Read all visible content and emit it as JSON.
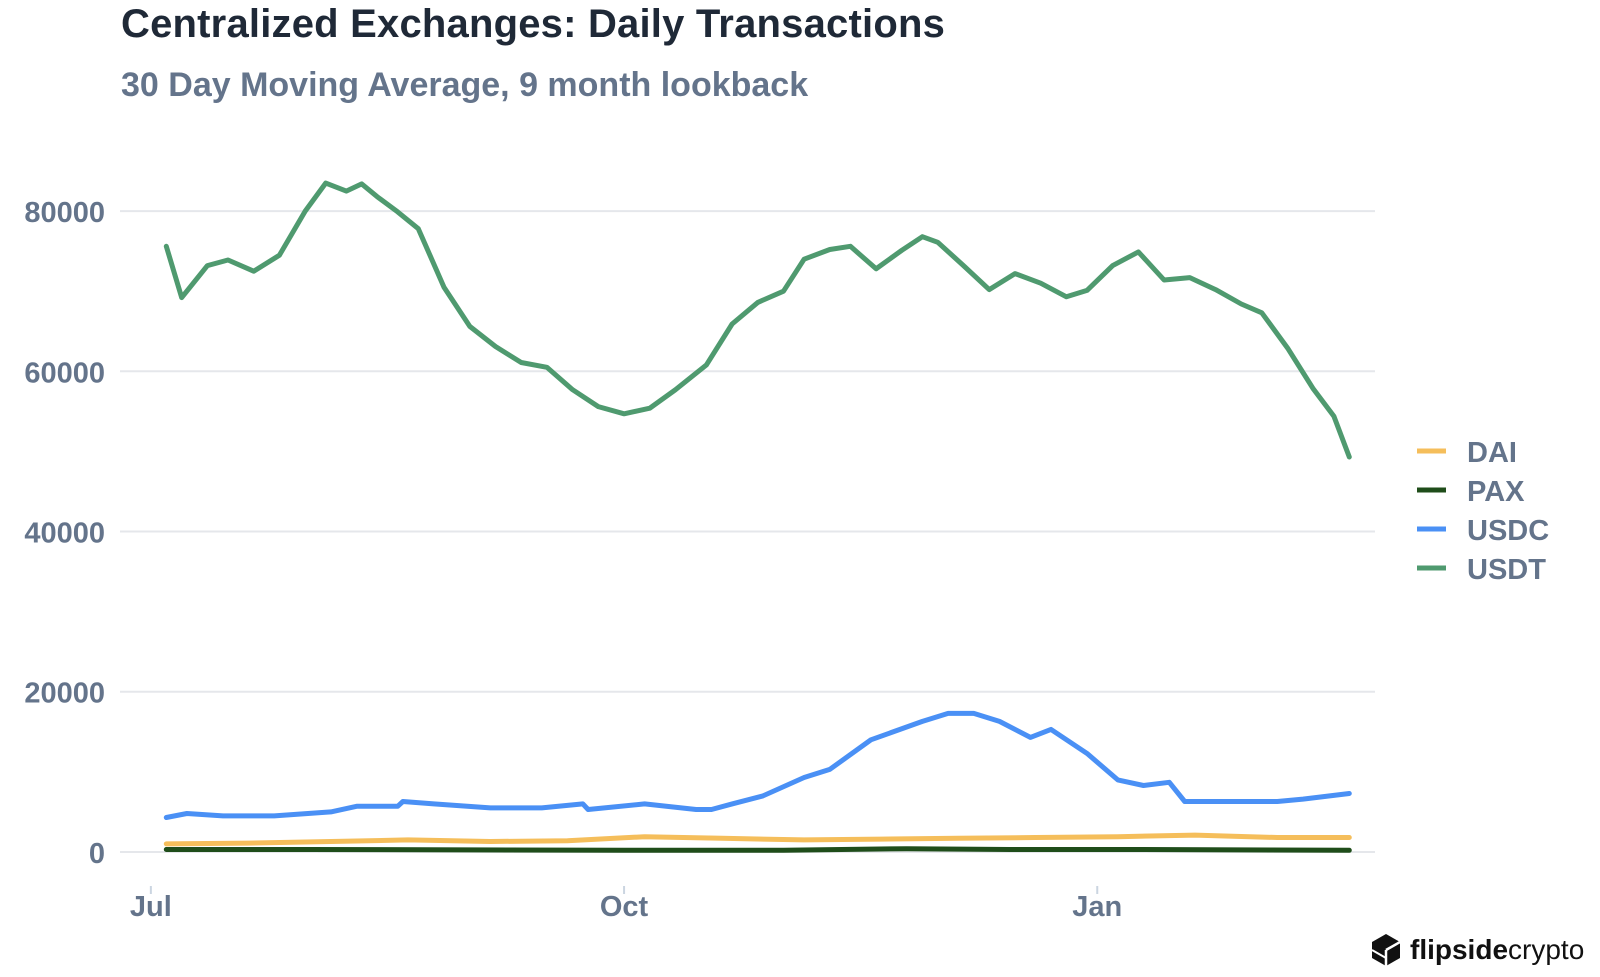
{
  "header": {
    "title": "Centralized Exchanges: Daily Transactions",
    "subtitle": "30 Day Moving Average, 9 month lookback"
  },
  "logo": {
    "icon": "hexagon-cube-logo-icon",
    "brand_bold": "flipside",
    "brand_light": "crypto"
  },
  "chart_data": {
    "type": "line",
    "title": "Centralized Exchanges: Daily Transactions",
    "subtitle": "30 Day Moving Average, 9 month lookback",
    "xlabel": "",
    "ylabel": "",
    "ylim": [
      -4500,
      88500
    ],
    "yticks": [
      0,
      20000,
      40000,
      60000,
      80000
    ],
    "ytick_labels": [
      "0",
      "20000",
      "40000",
      "60000",
      "80000"
    ],
    "xlim": [
      "2022-06-25",
      "2023-02-24"
    ],
    "xticks": [
      "2022-07-01",
      "2022-10-01",
      "2023-01-01"
    ],
    "xtick_labels": [
      "Jul",
      "Oct",
      "Jan"
    ],
    "grid": true,
    "legend_position": "right",
    "series": [
      {
        "name": "DAI",
        "color": "#f5be5b",
        "points": [
          [
            "2022-07-04",
            1000
          ],
          [
            "2022-07-20",
            1100
          ],
          [
            "2022-08-05",
            1300
          ],
          [
            "2022-08-20",
            1500
          ],
          [
            "2022-09-05",
            1300
          ],
          [
            "2022-09-20",
            1400
          ],
          [
            "2022-10-05",
            1900
          ],
          [
            "2022-10-20",
            1700
          ],
          [
            "2022-11-05",
            1500
          ],
          [
            "2022-11-20",
            1600
          ],
          [
            "2022-12-05",
            1700
          ],
          [
            "2022-12-20",
            1800
          ],
          [
            "2023-01-05",
            1900
          ],
          [
            "2023-01-20",
            2100
          ],
          [
            "2023-02-05",
            1800
          ],
          [
            "2023-02-19",
            1800
          ]
        ]
      },
      {
        "name": "PAX",
        "color": "#1f4d1a",
        "points": [
          [
            "2022-07-04",
            300
          ],
          [
            "2022-08-01",
            300
          ],
          [
            "2022-09-01",
            250
          ],
          [
            "2022-10-01",
            200
          ],
          [
            "2022-11-01",
            200
          ],
          [
            "2022-11-25",
            400
          ],
          [
            "2022-12-15",
            300
          ],
          [
            "2023-01-10",
            300
          ],
          [
            "2023-02-19",
            200
          ]
        ]
      },
      {
        "name": "USDC",
        "color": "#4a90f5",
        "points": [
          [
            "2022-07-04",
            4300
          ],
          [
            "2022-07-08",
            4800
          ],
          [
            "2022-07-15",
            4500
          ],
          [
            "2022-07-25",
            4500
          ],
          [
            "2022-08-05",
            5000
          ],
          [
            "2022-08-10",
            5700
          ],
          [
            "2022-08-18",
            5700
          ],
          [
            "2022-08-19",
            6300
          ],
          [
            "2022-08-25",
            6000
          ],
          [
            "2022-09-05",
            5500
          ],
          [
            "2022-09-15",
            5500
          ],
          [
            "2022-09-23",
            6000
          ],
          [
            "2022-09-24",
            5300
          ],
          [
            "2022-10-05",
            6000
          ],
          [
            "2022-10-15",
            5300
          ],
          [
            "2022-10-18",
            5300
          ],
          [
            "2022-10-22",
            6000
          ],
          [
            "2022-10-28",
            7000
          ],
          [
            "2022-11-05",
            9300
          ],
          [
            "2022-11-10",
            10300
          ],
          [
            "2022-11-18",
            14000
          ],
          [
            "2022-11-28",
            16300
          ],
          [
            "2022-12-03",
            17300
          ],
          [
            "2022-12-08",
            17300
          ],
          [
            "2022-12-13",
            16300
          ],
          [
            "2022-12-19",
            14300
          ],
          [
            "2022-12-23",
            15300
          ],
          [
            "2022-12-30",
            12300
          ],
          [
            "2023-01-05",
            9000
          ],
          [
            "2023-01-10",
            8300
          ],
          [
            "2023-01-15",
            8700
          ],
          [
            "2023-01-18",
            6300
          ],
          [
            "2023-01-28",
            6300
          ],
          [
            "2023-02-05",
            6300
          ],
          [
            "2023-02-10",
            6600
          ],
          [
            "2023-02-19",
            7300
          ]
        ]
      },
      {
        "name": "USDT",
        "color": "#4f9a6f",
        "points": [
          [
            "2022-07-04",
            75600
          ],
          [
            "2022-07-07",
            69200
          ],
          [
            "2022-07-12",
            73200
          ],
          [
            "2022-07-16",
            73900
          ],
          [
            "2022-07-21",
            72500
          ],
          [
            "2022-07-26",
            74500
          ],
          [
            "2022-07-31",
            80000
          ],
          [
            "2022-08-04",
            83500
          ],
          [
            "2022-08-08",
            82500
          ],
          [
            "2022-08-11",
            83400
          ],
          [
            "2022-08-14",
            81800
          ],
          [
            "2022-08-18",
            79900
          ],
          [
            "2022-08-22",
            77800
          ],
          [
            "2022-08-27",
            70500
          ],
          [
            "2022-09-01",
            65600
          ],
          [
            "2022-09-06",
            63100
          ],
          [
            "2022-09-11",
            61100
          ],
          [
            "2022-09-16",
            60500
          ],
          [
            "2022-09-21",
            57700
          ],
          [
            "2022-09-26",
            55600
          ],
          [
            "2022-10-01",
            54700
          ],
          [
            "2022-10-06",
            55400
          ],
          [
            "2022-10-11",
            57700
          ],
          [
            "2022-10-17",
            60800
          ],
          [
            "2022-10-22",
            65900
          ],
          [
            "2022-10-27",
            68600
          ],
          [
            "2022-11-01",
            70000
          ],
          [
            "2022-11-05",
            74000
          ],
          [
            "2022-11-10",
            75200
          ],
          [
            "2022-11-14",
            75600
          ],
          [
            "2022-11-19",
            72800
          ],
          [
            "2022-11-24",
            75100
          ],
          [
            "2022-11-28",
            76800
          ],
          [
            "2022-12-01",
            76100
          ],
          [
            "2022-12-06",
            73200
          ],
          [
            "2022-12-11",
            70200
          ],
          [
            "2022-12-16",
            72200
          ],
          [
            "2022-12-21",
            71000
          ],
          [
            "2022-12-26",
            69300
          ],
          [
            "2022-12-30",
            70100
          ],
          [
            "2023-01-04",
            73200
          ],
          [
            "2023-01-09",
            74900
          ],
          [
            "2023-01-14",
            71400
          ],
          [
            "2023-01-19",
            71700
          ],
          [
            "2023-01-24",
            70200
          ],
          [
            "2023-01-29",
            68400
          ],
          [
            "2023-02-02",
            67300
          ],
          [
            "2023-02-07",
            62900
          ],
          [
            "2023-02-12",
            57800
          ],
          [
            "2023-02-16",
            54400
          ],
          [
            "2023-02-19",
            49300
          ]
        ]
      }
    ]
  }
}
